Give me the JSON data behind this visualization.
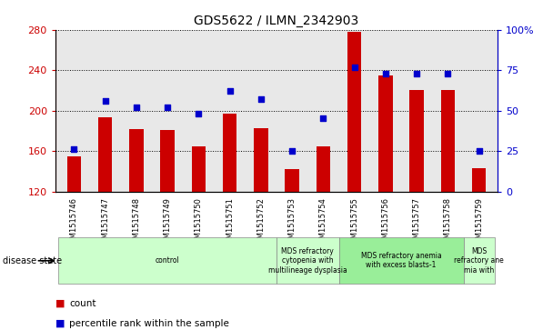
{
  "title": "GDS5622 / ILMN_2342903",
  "samples": [
    "GSM1515746",
    "GSM1515747",
    "GSM1515748",
    "GSM1515749",
    "GSM1515750",
    "GSM1515751",
    "GSM1515752",
    "GSM1515753",
    "GSM1515754",
    "GSM1515755",
    "GSM1515756",
    "GSM1515757",
    "GSM1515758",
    "GSM1515759"
  ],
  "bar_values": [
    155,
    193,
    182,
    181,
    165,
    197,
    183,
    142,
    165,
    278,
    235,
    220,
    220,
    143
  ],
  "dot_values": [
    26,
    56,
    52,
    52,
    48,
    62,
    57,
    25,
    45,
    77,
    73,
    73,
    73,
    25
  ],
  "bar_color": "#cc0000",
  "dot_color": "#0000cc",
  "ylim_left": [
    120,
    280
  ],
  "ylim_right": [
    0,
    100
  ],
  "yticks_left": [
    120,
    160,
    200,
    240,
    280
  ],
  "yticks_right": [
    0,
    25,
    50,
    75,
    100
  ],
  "groups": [
    {
      "label": "control",
      "start": 0,
      "end": 7,
      "color": "#ccffcc"
    },
    {
      "label": "MDS refractory\ncytopenia with\nmultilineage dysplasia",
      "start": 7,
      "end": 9,
      "color": "#ccffcc"
    },
    {
      "label": "MDS refractory anemia\nwith excess blasts-1",
      "start": 9,
      "end": 13,
      "color": "#99ee99"
    },
    {
      "label": "MDS\nrefractory ane\nmia with",
      "start": 13,
      "end": 14,
      "color": "#ccffcc"
    }
  ],
  "legend_count": "count",
  "legend_pct": "percentile rank within the sample",
  "disease_label": "disease state",
  "background_color": "#ffffff",
  "tick_color_left": "#cc0000",
  "tick_color_right": "#0000cc",
  "plot_bg": "#e8e8e8"
}
